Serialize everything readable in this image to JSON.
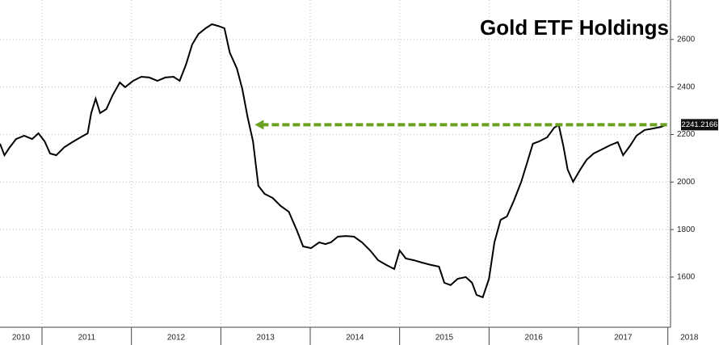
{
  "chart_data": {
    "type": "line",
    "title": "Gold ETF Holdings",
    "series": [
      {
        "name": "Gold ETF Holdings",
        "color": "#000000",
        "x": [
          2010.53,
          2010.58,
          2010.64,
          2010.71,
          2010.8,
          2010.89,
          2010.96,
          2011.03,
          2011.09,
          2011.16,
          2011.25,
          2011.34,
          2011.43,
          2011.51,
          2011.55,
          2011.6,
          2011.65,
          2011.72,
          2011.79,
          2011.87,
          2011.93,
          2012.02,
          2012.11,
          2012.2,
          2012.29,
          2012.38,
          2012.47,
          2012.54,
          2012.61,
          2012.68,
          2012.75,
          2012.83,
          2012.9,
          2012.97,
          2013.04,
          2013.1,
          2013.18,
          2013.24,
          2013.3,
          2013.36,
          2013.42,
          2013.49,
          2013.58,
          2013.67,
          2013.76,
          2013.85,
          2013.92,
          2014.01,
          2014.1,
          2014.17,
          2014.23,
          2014.31,
          2014.4,
          2014.49,
          2014.58,
          2014.67,
          2014.76,
          2014.85,
          2014.94,
          2015.0,
          2015.07,
          2015.16,
          2015.25,
          2015.35,
          2015.44,
          2015.5,
          2015.57,
          2015.65,
          2015.74,
          2015.81,
          2015.86,
          2015.93,
          2016.0,
          2016.06,
          2016.13,
          2016.2,
          2016.28,
          2016.36,
          2016.43,
          2016.49,
          2016.56,
          2016.65,
          2016.73,
          2016.78,
          2016.83,
          2016.88,
          2016.94,
          2017.02,
          2017.09,
          2017.17,
          2017.26,
          2017.35,
          2017.44,
          2017.5,
          2017.58,
          2017.65,
          2017.74,
          2017.83,
          2017.92,
          2017.99
        ],
        "values": [
          2161,
          2113,
          2147,
          2181,
          2195,
          2181,
          2205,
          2171,
          2120,
          2113,
          2147,
          2168,
          2188,
          2205,
          2290,
          2351,
          2290,
          2307,
          2365,
          2419,
          2399,
          2426,
          2443,
          2440,
          2426,
          2440,
          2443,
          2426,
          2494,
          2579,
          2623,
          2647,
          2664,
          2657,
          2647,
          2545,
          2477,
          2392,
          2273,
          2171,
          1984,
          1950,
          1933,
          1899,
          1875,
          1797,
          1729,
          1722,
          1746,
          1739,
          1746,
          1770,
          1773,
          1770,
          1746,
          1712,
          1671,
          1651,
          1634,
          1712,
          1678,
          1671,
          1661,
          1651,
          1644,
          1576,
          1566,
          1593,
          1600,
          1576,
          1525,
          1515,
          1593,
          1746,
          1841,
          1855,
          1923,
          2001,
          2086,
          2161,
          2171,
          2188,
          2229,
          2239,
          2154,
          2052,
          2001,
          2052,
          2093,
          2120,
          2137,
          2154,
          2168,
          2113,
          2154,
          2195,
          2219,
          2225,
          2232,
          2241.2166
        ]
      }
    ],
    "arrow_x_start": 2013.38,
    "arrow_color": "#6aa121",
    "xlim": [
      2010.53,
      2018.03
    ],
    "xticks": [
      2010,
      2011,
      2012,
      2013,
      2014,
      2015,
      2016,
      2017,
      2018
    ],
    "ylim": [
      1389,
      2766
    ],
    "yticks": [
      1600,
      1800,
      2000,
      2200,
      2400,
      2600
    ],
    "grid": true
  }
}
